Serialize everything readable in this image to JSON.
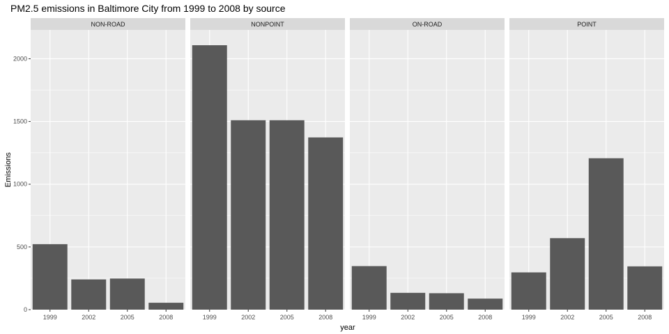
{
  "chart_data": {
    "type": "bar",
    "title": "PM2.5 emissions in Baltimore City from 1999 to 2008 by source",
    "xlabel": "year",
    "ylabel": "Emissions",
    "categories": [
      "1999",
      "2002",
      "2005",
      "2008"
    ],
    "ylim": [
      0,
      2230
    ],
    "yticks": [
      0,
      500,
      1000,
      1500,
      2000
    ],
    "grid": true,
    "legend": "none",
    "bar_color": "#595959",
    "panel_background": "#ebebeb",
    "strip_background": "#d9d9d9",
    "grid_color": "#ffffff",
    "facets": [
      {
        "name": "NON-ROAD",
        "values": [
          522,
          241,
          248,
          55
        ]
      },
      {
        "name": "NONPOINT",
        "values": [
          2108,
          1510,
          1510,
          1373
        ]
      },
      {
        "name": "ON-ROAD",
        "values": [
          347,
          134,
          131,
          88
        ]
      },
      {
        "name": "POINT",
        "values": [
          297,
          570,
          1207,
          345
        ]
      }
    ]
  }
}
